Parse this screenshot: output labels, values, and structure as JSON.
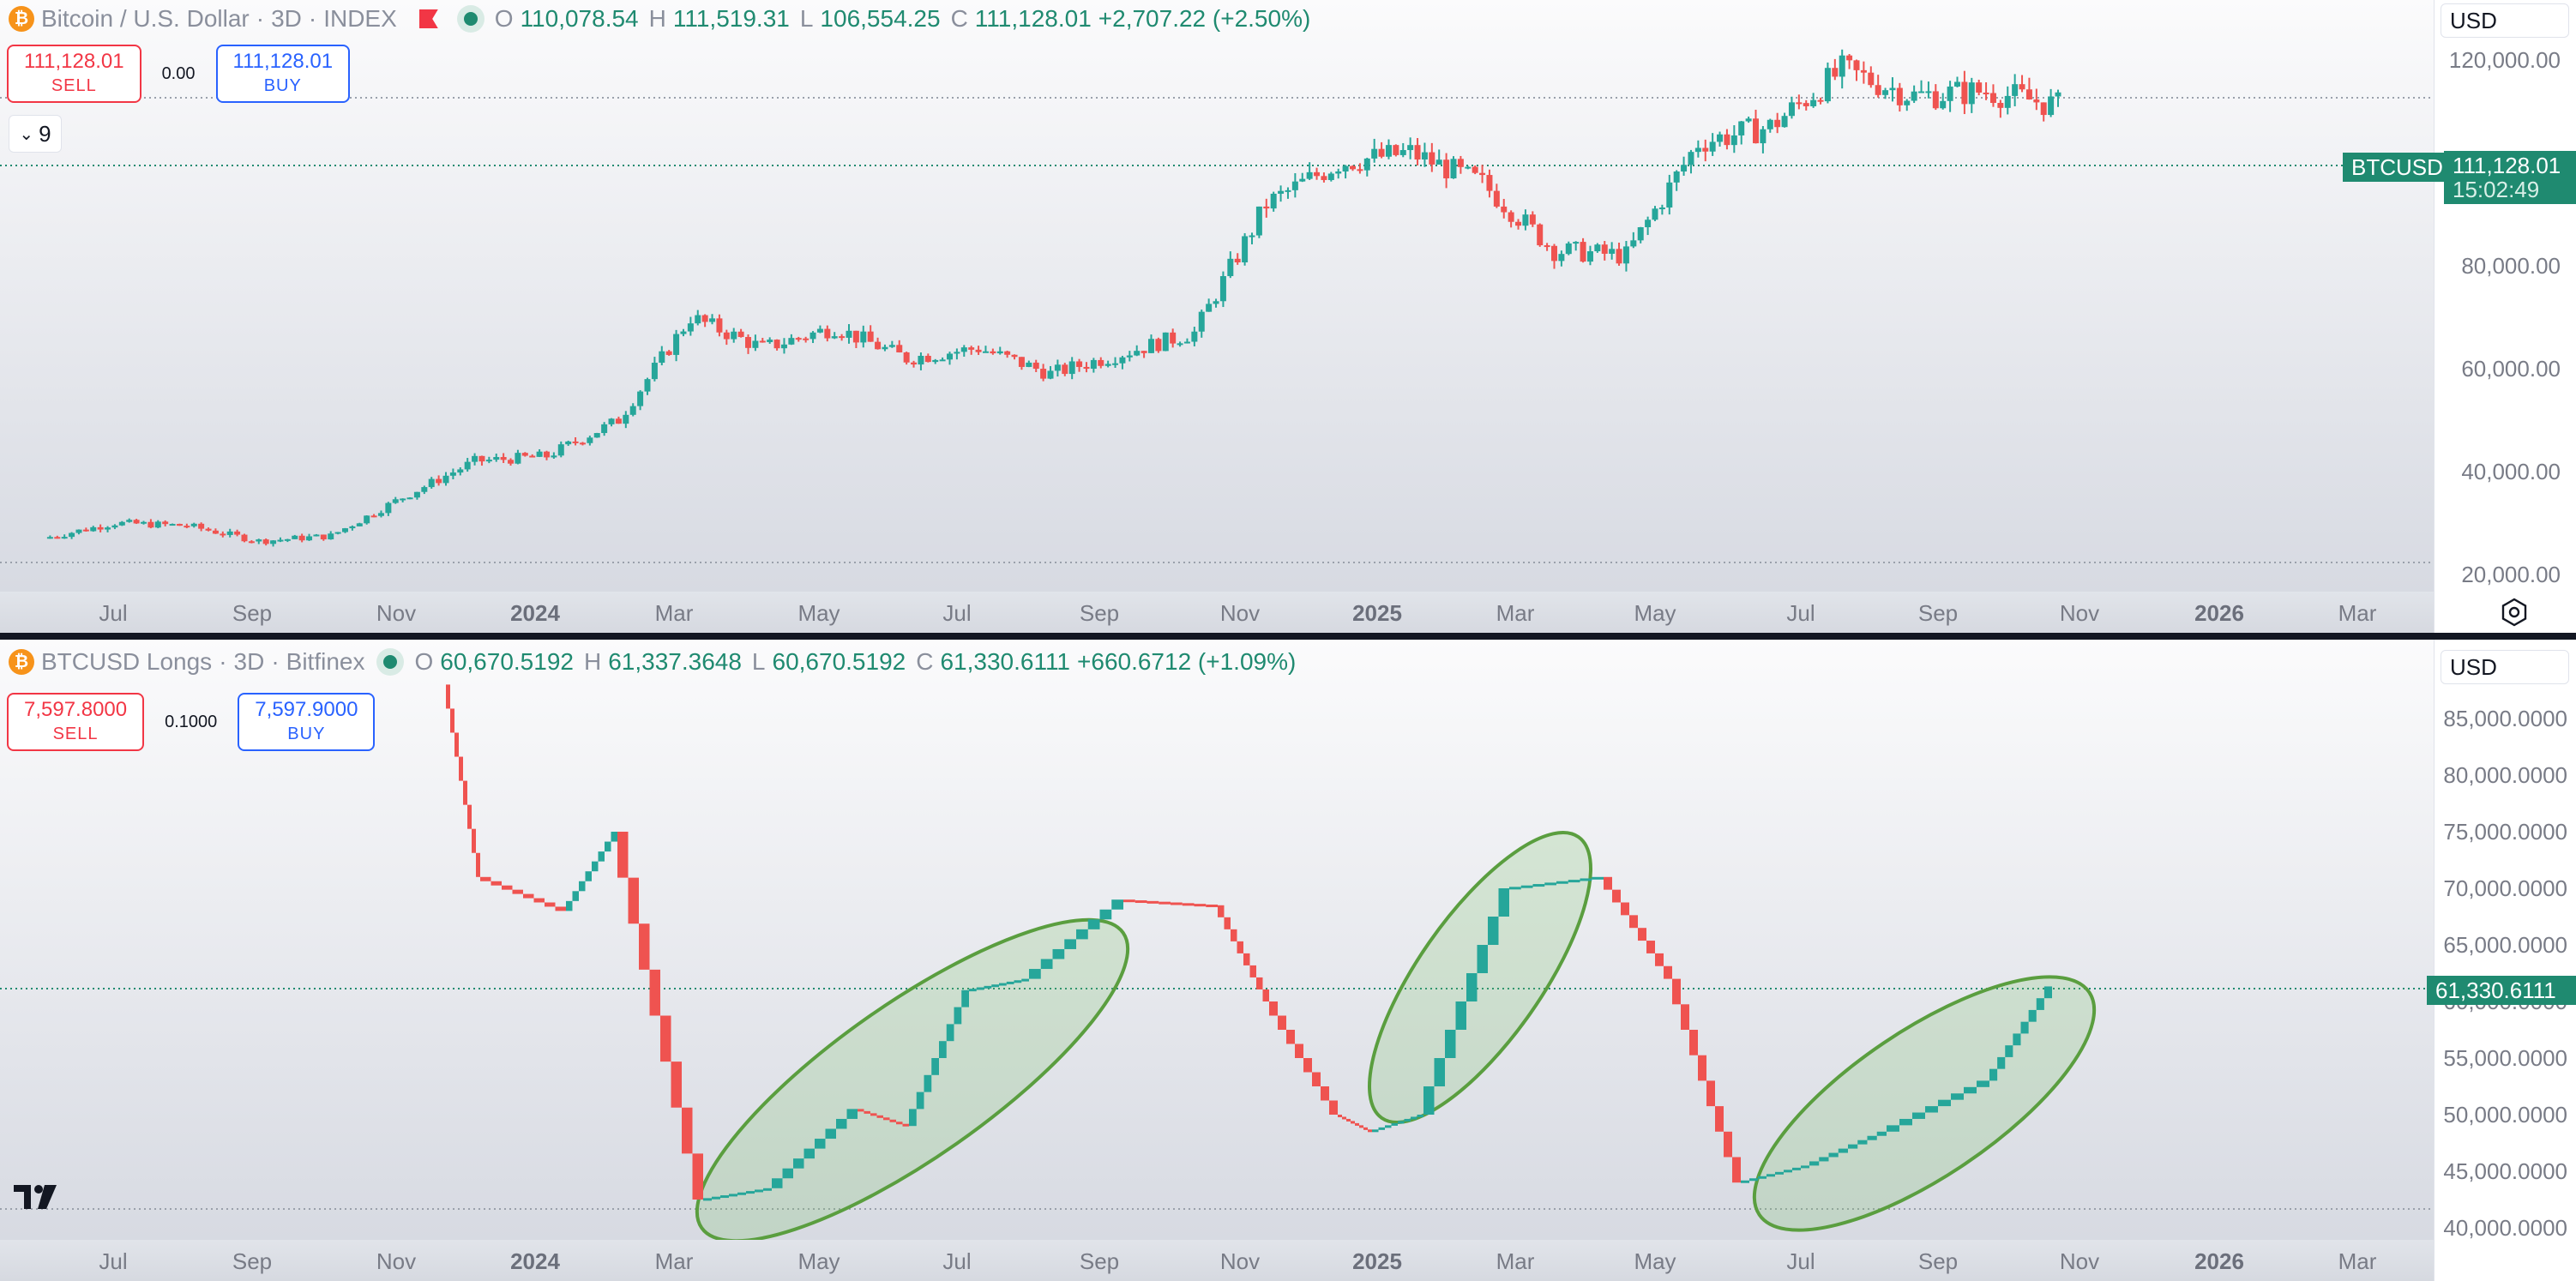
{
  "colors": {
    "up": "#26a69a",
    "down": "#ef5350",
    "accent": "#1f8a70",
    "sell": "#f23645",
    "buy": "#2962ff",
    "ellipse": "#5a9e3f"
  },
  "top": {
    "symbol": "Bitcoin / U.S. Dollar",
    "interval": "3D",
    "exchange": "INDEX",
    "ohlc": {
      "o": "110,078.54",
      "h": "111,519.31",
      "l": "106,554.25",
      "c": "111,128.01",
      "change": "+2,707.22 (+2.50%)"
    },
    "sell_price": "111,128.01",
    "sell_label": "SELL",
    "buy_price": "111,128.01",
    "buy_label": "BUY",
    "spread": "0.00",
    "collapse_count": "9",
    "currency": "USD",
    "price_tag_symbol": "BTCUSD",
    "price_tag_value": "111,128.01",
    "price_tag_countdown": "15:02:49",
    "y_ticks": [
      "120,000.00",
      "100,000.00",
      "80,000.00",
      "60,000.00",
      "40,000.00",
      "20,000.00"
    ],
    "x_ticks": [
      "Jul",
      "Sep",
      "Nov",
      "2024",
      "Mar",
      "May",
      "Jul",
      "Sep",
      "Nov",
      "2025",
      "Mar",
      "May",
      "Jul",
      "Sep",
      "Nov",
      "2026",
      "Mar"
    ],
    "x_bold": [
      "2024",
      "2025",
      "2026"
    ]
  },
  "bottom": {
    "symbol": "BTCUSD Longs",
    "interval": "3D",
    "exchange": "Bitfinex",
    "ohlc": {
      "o": "60,670.5192",
      "h": "61,337.3648",
      "l": "60,670.5192",
      "c": "61,330.6111",
      "change": "+660.6712 (+1.09%)"
    },
    "sell_price": "7,597.8000",
    "sell_label": "SELL",
    "buy_price": "7,597.9000",
    "buy_label": "BUY",
    "spread": "0.1000",
    "currency": "USD",
    "price_tag_value": "61,330.6111",
    "y_ticks": [
      "85,000.0000",
      "80,000.0000",
      "75,000.0000",
      "70,000.0000",
      "65,000.0000",
      "60,000.0000",
      "55,000.0000",
      "50,000.0000",
      "45,000.0000",
      "40,000.0000"
    ],
    "x_ticks": [
      "Jul",
      "Sep",
      "Nov",
      "2024",
      "Mar",
      "May",
      "Jul",
      "Sep",
      "Nov",
      "2025",
      "Mar",
      "May",
      "Jul",
      "Sep",
      "Nov",
      "2026",
      "Mar"
    ],
    "x_bold": [
      "2024",
      "2025",
      "2026"
    ]
  },
  "chart_data": [
    {
      "type": "candlestick",
      "title": "Bitcoin / U.S. Dollar · 3D · INDEX",
      "ylim": [
        20000,
        125000
      ],
      "x": [
        "2023-06",
        "2023-07",
        "2023-08",
        "2023-09",
        "2023-10",
        "2023-11",
        "2023-12",
        "2024-01",
        "2024-02",
        "2024-03",
        "2024-04",
        "2024-05",
        "2024-06",
        "2024-07",
        "2024-08",
        "2024-09",
        "2024-10",
        "2024-11",
        "2024-12",
        "2025-01",
        "2025-02",
        "2025-03",
        "2025-04",
        "2025-05",
        "2025-06",
        "2025-07",
        "2025-08",
        "2025-09",
        "2025-10"
      ],
      "close": [
        27000,
        30000,
        29500,
        26500,
        27500,
        35000,
        42000,
        43000,
        50000,
        70000,
        64000,
        68000,
        62000,
        64000,
        59000,
        63000,
        67000,
        92000,
        100000,
        102000,
        96000,
        83000,
        82000,
        104000,
        107000,
        118000,
        113000,
        114000,
        111128
      ]
    },
    {
      "type": "line",
      "title": "BTCUSD Longs · 3D · Bitfinex",
      "ylim": [
        40000,
        88000
      ],
      "x": [
        "2023-11",
        "2023-12",
        "2024-01",
        "2024-02",
        "2024-03",
        "2024-04",
        "2024-05",
        "2024-06",
        "2024-07",
        "2024-08",
        "2024-09",
        "2024-10",
        "2024-11",
        "2024-12",
        "2025-01",
        "2025-02",
        "2025-03",
        "2025-04",
        "2025-05",
        "2025-06",
        "2025-07",
        "2025-08",
        "2025-09",
        "2025-10"
      ],
      "values": [
        88000,
        71000,
        68000,
        75000,
        42500,
        43500,
        50500,
        49000,
        61000,
        62000,
        69000,
        68500,
        60000,
        50000,
        48500,
        50000,
        70000,
        71000,
        62000,
        44000,
        45500,
        48500,
        53000,
        61330
      ]
    }
  ]
}
